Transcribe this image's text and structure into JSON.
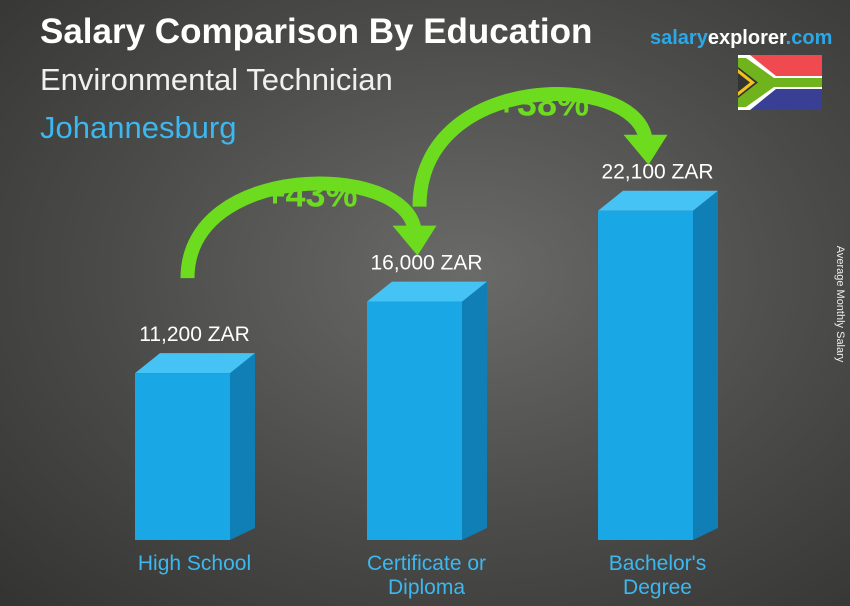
{
  "header": {
    "title": "Salary Comparison By Education",
    "subtitle": "Environmental Technician",
    "location": "Johannesburg"
  },
  "logo": {
    "part1": "salary",
    "part2": "explorer",
    "part3": ".com"
  },
  "flag": "south-africa-flag",
  "colors": {
    "bar_front": "#1aa7e6",
    "bar_side": "#0f7fb5",
    "bar_top": "#45c3f5",
    "arrow": "#6ddc1e",
    "category_text": "#3bb8f0"
  },
  "chart_data": {
    "type": "bar",
    "categories": [
      "High School",
      "Certificate or Diploma",
      "Bachelor's Degree"
    ],
    "category_lines": [
      [
        "High School"
      ],
      [
        "Certificate or",
        "Diploma"
      ],
      [
        "Bachelor's",
        "Degree"
      ]
    ],
    "values": [
      11200,
      16000,
      22100
    ],
    "value_labels": [
      "11,200 ZAR",
      "16,000 ZAR",
      "22,100 ZAR"
    ],
    "unit": "ZAR",
    "ylabel": "Average Monthly Salary",
    "changes": [
      {
        "from": 0,
        "to": 1,
        "label": "+43%"
      },
      {
        "from": 1,
        "to": 2,
        "label": "+38%"
      }
    ]
  }
}
